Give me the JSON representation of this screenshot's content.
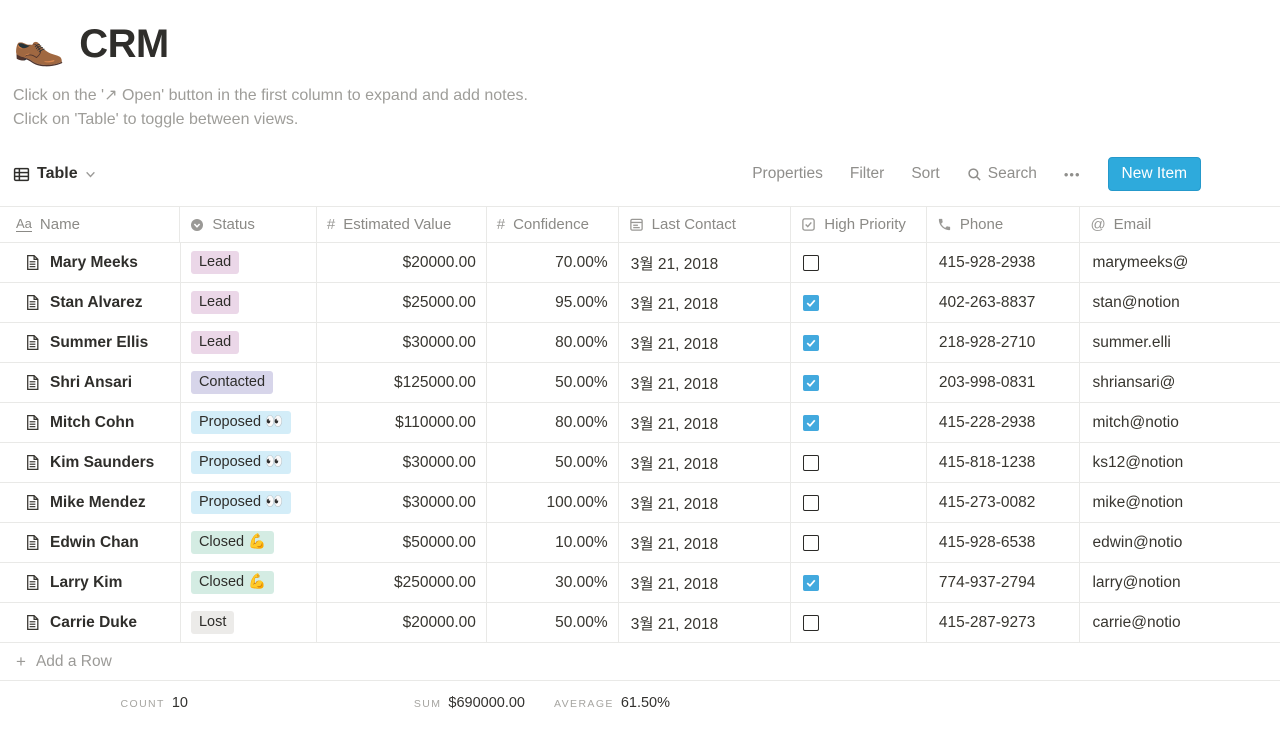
{
  "page": {
    "emoji": "👞",
    "title": "CRM",
    "description_lines": [
      "Click on the '↗ Open' button in the first column to expand and add notes.",
      "Click on 'Table' to toggle between views."
    ]
  },
  "toolbar": {
    "view_label": "Table",
    "actions": [
      "Properties",
      "Filter",
      "Sort"
    ],
    "search_label": "Search",
    "more_label": "•••",
    "new_item_label": "New Item",
    "accent_color": "#2EAADC"
  },
  "table": {
    "columns": [
      {
        "key": "name",
        "label": "Name",
        "icon": "text-icon"
      },
      {
        "key": "status",
        "label": "Status",
        "icon": "select-icon"
      },
      {
        "key": "value",
        "label": "Estimated Value",
        "icon": "number-icon"
      },
      {
        "key": "confidence",
        "label": "Confidence",
        "icon": "number-icon"
      },
      {
        "key": "date",
        "label": "Last Contact",
        "icon": "calendar-icon"
      },
      {
        "key": "priority",
        "label": "High Priority",
        "icon": "checkbox-icon"
      },
      {
        "key": "phone",
        "label": "Phone",
        "icon": "phone-icon"
      },
      {
        "key": "email",
        "label": "Email",
        "icon": "at-icon"
      }
    ],
    "status_styles": {
      "lead": "#EBD7E8",
      "contacted": "#D7D5EA",
      "proposed": "#D3EDF8",
      "closed": "#D4ECE3",
      "lost": "#ECEBE9"
    },
    "rows": [
      {
        "name": "Mary Meeks",
        "status": "Lead",
        "status_key": "lead",
        "estimated_value": "$20000.00",
        "confidence": "70.00%",
        "last_contact": "3월 21, 2018",
        "high_priority": false,
        "phone": "415-928-2938",
        "email": "marymeeks@"
      },
      {
        "name": "Stan Alvarez",
        "status": "Lead",
        "status_key": "lead",
        "estimated_value": "$25000.00",
        "confidence": "95.00%",
        "last_contact": "3월 21, 2018",
        "high_priority": true,
        "phone": "402-263-8837",
        "email": "stan@notion"
      },
      {
        "name": "Summer Ellis",
        "status": "Lead",
        "status_key": "lead",
        "estimated_value": "$30000.00",
        "confidence": "80.00%",
        "last_contact": "3월 21, 2018",
        "high_priority": true,
        "phone": "218-928-2710",
        "email": "summer.elli"
      },
      {
        "name": "Shri Ansari",
        "status": "Contacted",
        "status_key": "contacted",
        "estimated_value": "$125000.00",
        "confidence": "50.00%",
        "last_contact": "3월 21, 2018",
        "high_priority": true,
        "phone": "203-998-0831",
        "email": "shriansari@"
      },
      {
        "name": "Mitch Cohn",
        "status": "Proposed 👀",
        "status_key": "proposed",
        "estimated_value": "$110000.00",
        "confidence": "80.00%",
        "last_contact": "3월 21, 2018",
        "high_priority": true,
        "phone": "415-228-2938",
        "email": "mitch@notio"
      },
      {
        "name": "Kim Saunders",
        "status": "Proposed 👀",
        "status_key": "proposed",
        "estimated_value": "$30000.00",
        "confidence": "50.00%",
        "last_contact": "3월 21, 2018",
        "high_priority": false,
        "phone": "415-818-1238",
        "email": "ks12@notion"
      },
      {
        "name": "Mike Mendez",
        "status": "Proposed 👀",
        "status_key": "proposed",
        "estimated_value": "$30000.00",
        "confidence": "100.00%",
        "last_contact": "3월 21, 2018",
        "high_priority": false,
        "phone": "415-273-0082",
        "email": "mike@notion"
      },
      {
        "name": "Edwin Chan",
        "status": "Closed 💪",
        "status_key": "closed",
        "estimated_value": "$50000.00",
        "confidence": "10.00%",
        "last_contact": "3월 21, 2018",
        "high_priority": false,
        "phone": "415-928-6538",
        "email": "edwin@notio"
      },
      {
        "name": "Larry Kim",
        "status": "Closed 💪",
        "status_key": "closed",
        "estimated_value": "$250000.00",
        "confidence": "30.00%",
        "last_contact": "3월 21, 2018",
        "high_priority": true,
        "phone": "774-937-2794",
        "email": "larry@notion"
      },
      {
        "name": "Carrie Duke",
        "status": "Lost",
        "status_key": "lost",
        "estimated_value": "$20000.00",
        "confidence": "50.00%",
        "last_contact": "3월 21, 2018",
        "high_priority": false,
        "phone": "415-287-9273",
        "email": "carrie@notio"
      }
    ],
    "add_row_label": "Add a Row",
    "summary": {
      "count_label": "COUNT",
      "count_value": "10",
      "sum_label": "SUM",
      "sum_value": "$690000.00",
      "average_label": "AVERAGE",
      "average_value": "61.50%"
    }
  }
}
